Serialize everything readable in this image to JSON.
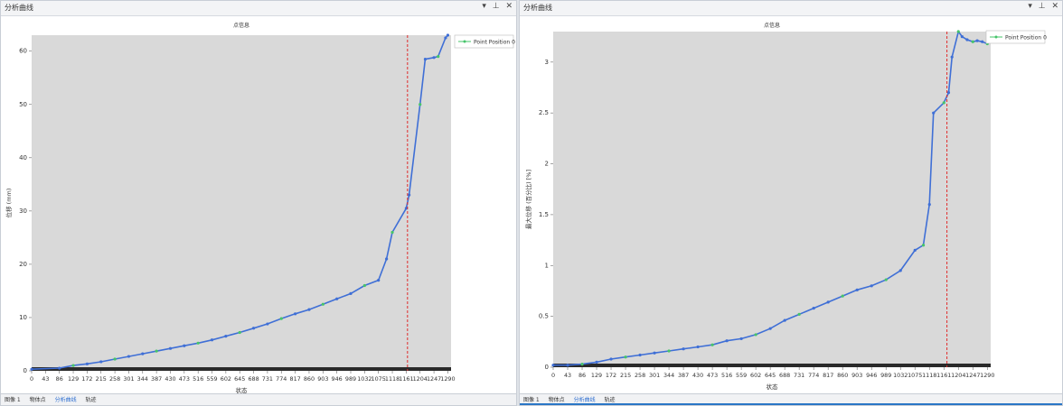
{
  "panels": [
    {
      "window_title": "分析曲线",
      "tabs": [
        "图像 1",
        "物体点",
        "分析曲线",
        "轨迹"
      ],
      "active_tab": 2,
      "legend_label": "Point Position 0"
    },
    {
      "window_title": "分析曲线",
      "tabs": [
        "图像 1",
        "物体点",
        "分析曲线",
        "轨迹"
      ],
      "active_tab": 2,
      "legend_label": "Point Position 0"
    }
  ],
  "colors": {
    "line": "#3f6fd6",
    "marker_green": "#46c46a",
    "plot_bg": "#d9d9d9",
    "guide": "#e02b2b",
    "baseline": "#2a2a2a"
  },
  "chart_data": [
    {
      "type": "line",
      "title": "点信息",
      "xlabel": "状态",
      "ylabel": "位移 (mm)",
      "xticks": [
        "0",
        "43",
        "86",
        "129",
        "172",
        "215",
        "258",
        "301",
        "344",
        "387",
        "430",
        "473",
        "516",
        "559",
        "602",
        "645",
        "688",
        "731",
        "774",
        "817",
        "860",
        "903",
        "946",
        "989",
        "1032",
        "1075",
        "1118",
        "1161",
        "1204",
        "1247",
        "1290"
      ],
      "xlim": [
        0,
        1300
      ],
      "ylim": [
        0,
        63
      ],
      "yticks": [
        0,
        10,
        20,
        30,
        40,
        50,
        60
      ],
      "vline_x": 1165,
      "legend_position": "top-right",
      "series": [
        {
          "name": "Point Position 0",
          "x": [
            0,
            86,
            129,
            172,
            215,
            258,
            301,
            344,
            387,
            430,
            473,
            516,
            559,
            602,
            645,
            688,
            731,
            774,
            817,
            860,
            903,
            946,
            989,
            1032,
            1075,
            1100,
            1118,
            1161,
            1170,
            1204,
            1220,
            1247,
            1260,
            1283,
            1290
          ],
          "y": [
            0.3,
            0.5,
            1.0,
            1.3,
            1.7,
            2.2,
            2.7,
            3.2,
            3.7,
            4.2,
            4.7,
            5.2,
            5.8,
            6.5,
            7.2,
            8.0,
            8.8,
            9.8,
            10.7,
            11.5,
            12.5,
            13.5,
            14.5,
            16.0,
            17.0,
            21.0,
            26.0,
            30.5,
            33.0,
            50.0,
            58.5,
            58.8,
            59.0,
            62.5,
            63.0
          ]
        }
      ]
    },
    {
      "type": "line",
      "title": "点信息",
      "xlabel": "状态",
      "ylabel": "最大位移 (百分比) [%]",
      "xticks": [
        "0",
        "43",
        "86",
        "129",
        "172",
        "215",
        "258",
        "301",
        "344",
        "387",
        "430",
        "473",
        "516",
        "559",
        "602",
        "645",
        "688",
        "731",
        "774",
        "817",
        "860",
        "903",
        "946",
        "989",
        "1032",
        "1075",
        "1118",
        "1161",
        "1204",
        "1247",
        "1290"
      ],
      "xlim": [
        0,
        1300
      ],
      "ylim": [
        0,
        3.3
      ],
      "yticks": [
        0,
        0.5,
        1,
        1.5,
        2,
        2.5,
        3
      ],
      "vline_x": 1170,
      "legend_position": "top-right",
      "series": [
        {
          "name": "Point Position 0",
          "x": [
            0,
            43,
            86,
            129,
            172,
            215,
            258,
            301,
            344,
            387,
            430,
            473,
            516,
            559,
            602,
            645,
            688,
            731,
            774,
            817,
            860,
            903,
            946,
            989,
            1032,
            1075,
            1100,
            1118,
            1130,
            1161,
            1175,
            1185,
            1204,
            1215,
            1230,
            1247,
            1260,
            1275,
            1290
          ],
          "y": [
            0.02,
            0.02,
            0.03,
            0.05,
            0.08,
            0.1,
            0.12,
            0.14,
            0.16,
            0.18,
            0.2,
            0.22,
            0.26,
            0.28,
            0.32,
            0.38,
            0.46,
            0.52,
            0.58,
            0.64,
            0.7,
            0.76,
            0.8,
            0.86,
            0.95,
            1.15,
            1.2,
            1.6,
            2.5,
            2.6,
            2.7,
            3.05,
            3.3,
            3.25,
            3.22,
            3.2,
            3.21,
            3.2,
            3.18
          ]
        }
      ]
    }
  ]
}
